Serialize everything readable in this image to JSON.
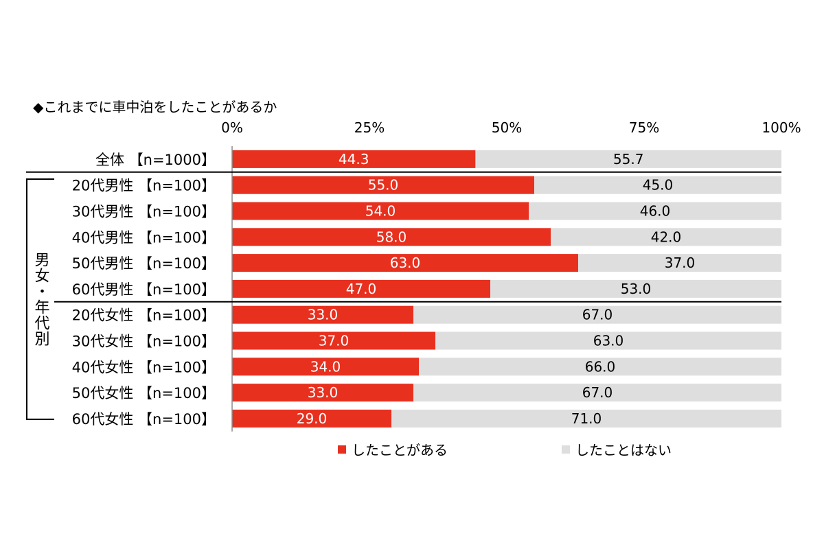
{
  "title": "◆これまでに車中泊をしたことがあるか",
  "group_label": "男女・年代別",
  "chart_data": {
    "type": "bar",
    "orientation": "horizontal",
    "stacked": true,
    "percent_stacked": true,
    "categories": [
      "全体 【n=1000】",
      "20代男性 【n=100】",
      "30代男性 【n=100】",
      "40代男性 【n=100】",
      "50代男性 【n=100】",
      "60代男性 【n=100】",
      "20代女性 【n=100】",
      "30代女性 【n=100】",
      "40代女性 【n=100】",
      "50代女性 【n=100】",
      "60代女性 【n=100】"
    ],
    "series": [
      {
        "name": "したことがある",
        "color": "#E8301F",
        "values": [
          44.3,
          55.0,
          54.0,
          58.0,
          63.0,
          47.0,
          33.0,
          37.0,
          34.0,
          33.0,
          29.0
        ],
        "labels": [
          "44.3",
          "55.0",
          "54.0",
          "58.0",
          "63.0",
          "47.0",
          "33.0",
          "37.0",
          "34.0",
          "33.0",
          "29.0"
        ]
      },
      {
        "name": "したことはない",
        "color": "#DEDEDE",
        "values": [
          55.7,
          45.0,
          46.0,
          42.0,
          37.0,
          53.0,
          67.0,
          63.0,
          66.0,
          67.0,
          71.0
        ],
        "labels": [
          "55.7",
          "45.0",
          "46.0",
          "42.0",
          "37.0",
          "53.0",
          "67.0",
          "63.0",
          "66.0",
          "67.0",
          "71.0"
        ]
      }
    ],
    "xlim": [
      0,
      100
    ],
    "xticks": [
      0,
      25,
      50,
      75,
      100
    ],
    "xtick_labels": [
      "0%",
      "25%",
      "50%",
      "75%",
      "100%"
    ],
    "legend_position": "bottom",
    "grid": false
  }
}
